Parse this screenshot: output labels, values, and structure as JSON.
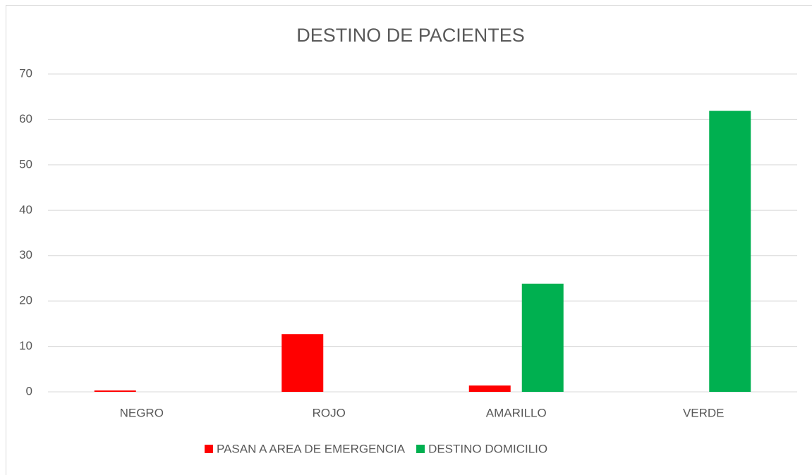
{
  "chart_data": {
    "type": "bar",
    "title": "DESTINO DE PACIENTES",
    "categories": [
      "NEGRO",
      "ROJO",
      "AMARILLO",
      "VERDE"
    ],
    "series": [
      {
        "name": "PASAN A AREA DE EMERGENCIA",
        "color": "#ff0000",
        "values": [
          0.3,
          12.7,
          1.4,
          0
        ]
      },
      {
        "name": "DESTINO DOMICILIO",
        "color": "#00b050",
        "values": [
          0,
          0,
          23.8,
          61.9
        ]
      }
    ],
    "ylim": [
      0,
      70
    ],
    "yticks": [
      0,
      10,
      20,
      30,
      40,
      50,
      60,
      70
    ],
    "grid": true,
    "legend": "bottom"
  }
}
